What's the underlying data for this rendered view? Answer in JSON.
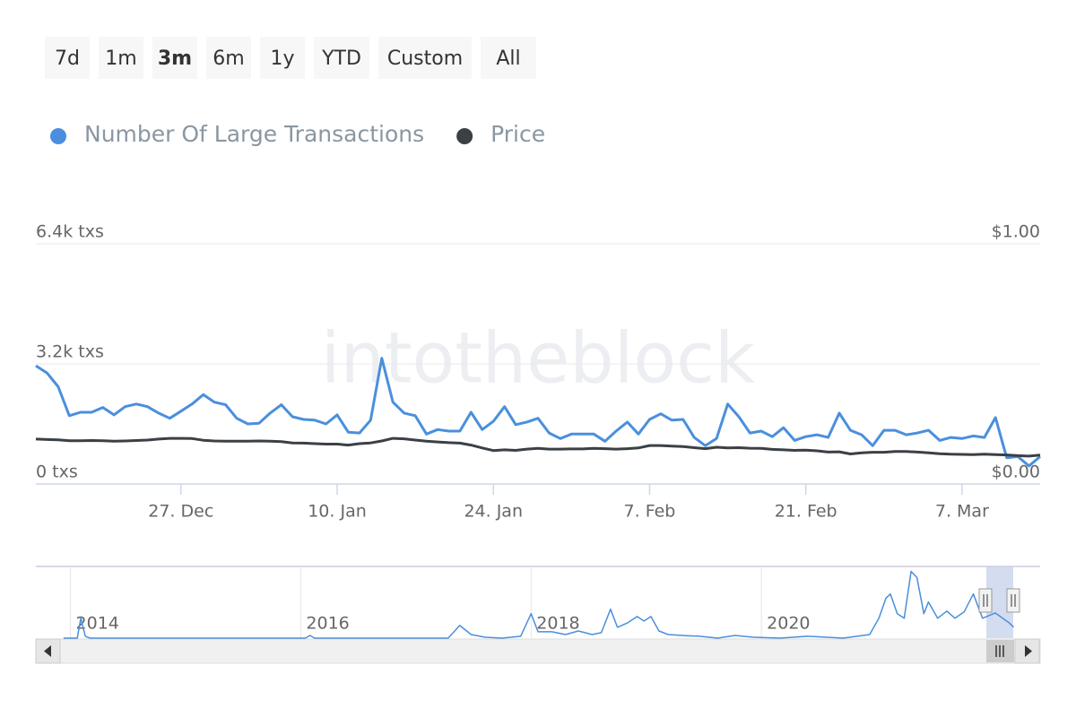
{
  "range_selector": {
    "buttons": [
      "7d",
      "1m",
      "3m",
      "6m",
      "1y",
      "YTD",
      "Custom",
      "All"
    ],
    "selected": 2
  },
  "watermark": "intotheblock",
  "chart_data": [
    {
      "type": "line",
      "x": [
        0,
        1,
        2,
        3,
        4,
        5,
        6,
        7,
        8,
        9,
        10,
        11,
        12,
        13,
        14,
        15,
        16,
        17,
        18,
        19,
        20,
        21,
        22,
        23,
        24,
        25,
        26,
        27,
        28,
        29,
        30,
        31,
        32,
        33,
        34,
        35,
        36,
        37,
        38,
        39,
        40,
        41,
        42,
        43,
        44,
        45,
        46,
        47,
        48,
        49,
        50,
        51,
        52,
        53,
        54,
        55,
        56,
        57,
        58,
        59,
        60,
        61,
        62,
        63,
        64,
        65,
        66,
        67,
        68,
        69,
        70,
        71,
        72,
        73,
        74,
        75,
        76,
        77,
        78,
        79,
        80,
        81,
        82,
        83,
        84,
        85,
        86,
        87,
        88,
        89,
        90
      ],
      "xlim": [
        0,
        90
      ],
      "xticks": [
        {
          "value": 13,
          "label": "27. Dec"
        },
        {
          "value": 27,
          "label": "10. Jan"
        },
        {
          "value": 41,
          "label": "24. Jan"
        },
        {
          "value": 55,
          "label": "7. Feb"
        },
        {
          "value": 69,
          "label": "21. Feb"
        },
        {
          "value": 83,
          "label": "7. Mar"
        }
      ],
      "ylim": [
        0,
        6400
      ],
      "yticks": [
        {
          "value": 0,
          "label": "0 txs"
        },
        {
          "value": 3200,
          "label": "3.2k txs"
        },
        {
          "value": 6400,
          "label": "6.4k txs"
        }
      ],
      "y2lim": [
        0,
        1
      ],
      "y2ticks": [
        {
          "value": 0,
          "label": "$0.00"
        },
        {
          "value": 1,
          "label": "$1.00"
        }
      ],
      "grid": true,
      "series": [
        {
          "name": "Number Of Large Transactions",
          "color": "#4a8fdd",
          "values": [
            3150,
            2960,
            2590,
            1820,
            1910,
            1910,
            2040,
            1840,
            2060,
            2130,
            2060,
            1890,
            1750,
            1940,
            2130,
            2380,
            2180,
            2110,
            1750,
            1600,
            1620,
            1890,
            2110,
            1790,
            1720,
            1700,
            1600,
            1840,
            1380,
            1360,
            1700,
            3350,
            2180,
            1890,
            1820,
            1330,
            1450,
            1410,
            1410,
            1910,
            1450,
            1670,
            2060,
            1580,
            1650,
            1750,
            1360,
            1210,
            1330,
            1330,
            1330,
            1140,
            1410,
            1650,
            1330,
            1720,
            1870,
            1700,
            1720,
            1240,
            1020,
            1210,
            2130,
            1790,
            1360,
            1410,
            1260,
            1500,
            1160,
            1260,
            1310,
            1240,
            1890,
            1430,
            1310,
            1020,
            1430,
            1430,
            1310,
            1360,
            1430,
            1160,
            1240,
            1210,
            1280,
            1240,
            1770,
            700,
            730,
            480,
            730
          ]
        },
        {
          "name": "Price",
          "color": "#3b4045",
          "axis": "y2",
          "values": [
            0.187,
            0.185,
            0.184,
            0.18,
            0.18,
            0.181,
            0.18,
            0.178,
            0.179,
            0.181,
            0.183,
            0.187,
            0.19,
            0.19,
            0.189,
            0.182,
            0.179,
            0.178,
            0.178,
            0.178,
            0.179,
            0.178,
            0.176,
            0.171,
            0.17,
            0.168,
            0.166,
            0.166,
            0.162,
            0.168,
            0.171,
            0.179,
            0.19,
            0.188,
            0.183,
            0.178,
            0.175,
            0.172,
            0.17,
            0.162,
            0.15,
            0.139,
            0.142,
            0.14,
            0.145,
            0.148,
            0.145,
            0.145,
            0.146,
            0.146,
            0.148,
            0.147,
            0.145,
            0.147,
            0.15,
            0.16,
            0.16,
            0.158,
            0.156,
            0.151,
            0.147,
            0.153,
            0.15,
            0.151,
            0.149,
            0.148,
            0.144,
            0.142,
            0.14,
            0.141,
            0.138,
            0.133,
            0.134,
            0.125,
            0.13,
            0.132,
            0.132,
            0.135,
            0.135,
            0.133,
            0.13,
            0.126,
            0.124,
            0.123,
            0.122,
            0.124,
            0.122,
            0.121,
            0.118,
            0.116,
            0.12
          ]
        }
      ]
    },
    {
      "type": "line",
      "x": [
        2013.94,
        2014.06,
        2014.09,
        2014.13,
        2014.17,
        2016.04,
        2016.08,
        2016.12,
        2017.28,
        2017.38,
        2017.48,
        2017.6,
        2017.75,
        2017.91,
        2018.0,
        2018.06,
        2018.18,
        2018.3,
        2018.41,
        2018.53,
        2018.61,
        2018.69,
        2018.75,
        2018.84,
        2018.92,
        2018.98,
        2019.04,
        2019.11,
        2019.19,
        2019.31,
        2019.46,
        2019.62,
        2019.77,
        2019.93,
        2020.16,
        2020.4,
        2020.71,
        2020.94,
        2021.02,
        2021.08,
        2021.12,
        2021.18,
        2021.24,
        2021.3,
        2021.35,
        2021.41,
        2021.45,
        2021.53,
        2021.61,
        2021.68,
        2021.76,
        2021.84,
        2021.92,
        2022.03,
        2022.15,
        2022.19
      ],
      "xlim": [
        2013.7,
        2022.42
      ],
      "xticks": [
        {
          "value": 2014,
          "label": "2014"
        },
        {
          "value": 2016,
          "label": "2016"
        },
        {
          "value": 2018,
          "label": "2018"
        },
        {
          "value": 2020,
          "label": "2020"
        }
      ],
      "ylim": [
        0,
        5400
      ],
      "series": [
        {
          "name": "Number Of Large Transactions",
          "color": "#4a8fdd",
          "values": [
            0,
            0,
            1500,
            140,
            0,
            0,
            200,
            0,
            0,
            950,
            270,
            70,
            0,
            140,
            1840,
            480,
            480,
            270,
            540,
            270,
            410,
            2180,
            820,
            1160,
            1630,
            1290,
            1630,
            540,
            270,
            200,
            140,
            0,
            200,
            70,
            0,
            140,
            0,
            270,
            1500,
            2990,
            3330,
            1840,
            1500,
            5030,
            4560,
            1840,
            2720,
            1500,
            2040,
            1500,
            1970,
            3330,
            1500,
            1900,
            1160,
            820
          ]
        }
      ]
    }
  ]
}
